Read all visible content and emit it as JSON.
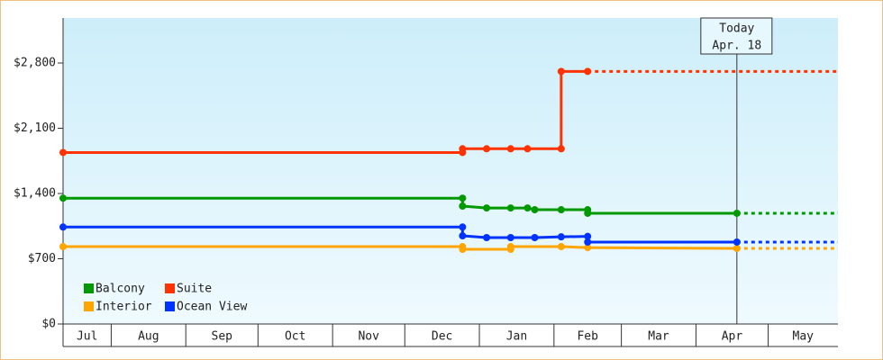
{
  "chart_data": {
    "type": "line",
    "ylim": [
      0,
      3283
    ],
    "yticks": [
      {
        "value": 0,
        "label": "$0"
      },
      {
        "value": 700,
        "label": "$700"
      },
      {
        "value": 1400,
        "label": "$1,400"
      },
      {
        "value": 2100,
        "label": "$2,100"
      },
      {
        "value": 2800,
        "label": "$2,800"
      }
    ],
    "xlim": [
      11,
      333
    ],
    "xticks": [
      {
        "value": 0,
        "label": "Jul"
      },
      {
        "value": 31,
        "label": "Aug"
      },
      {
        "value": 62,
        "label": "Sep"
      },
      {
        "value": 92,
        "label": "Oct"
      },
      {
        "value": 123,
        "label": "Nov"
      },
      {
        "value": 153,
        "label": "Dec"
      },
      {
        "value": 184,
        "label": "Jan"
      },
      {
        "value": 215,
        "label": "Feb"
      },
      {
        "value": 243,
        "label": "Mar"
      },
      {
        "value": 274,
        "label": "Apr"
      },
      {
        "value": 304,
        "label": "May"
      }
    ],
    "annotation": {
      "x": 291,
      "label": "Today",
      "sublabel": "Apr. 18"
    },
    "projection": true,
    "legend": "lower left",
    "series": [
      {
        "name": "Balcony",
        "color": "#009900",
        "x": [
          11,
          177,
          177,
          187,
          197,
          204,
          207,
          218,
          229,
          229,
          291
        ],
        "values": [
          1350,
          1350,
          1265,
          1245,
          1245,
          1245,
          1226,
          1226,
          1226,
          1188,
          1188
        ]
      },
      {
        "name": "Suite",
        "color": "#ff3300",
        "x": [
          11,
          177,
          177,
          187,
          197,
          204,
          218,
          218,
          229
        ],
        "values": [
          1840,
          1840,
          1880,
          1880,
          1880,
          1880,
          1880,
          2710,
          2710
        ]
      },
      {
        "name": "Interior",
        "color": "#ffa500",
        "x": [
          11,
          177,
          177,
          197,
          197,
          218,
          229,
          291
        ],
        "values": [
          830,
          830,
          801,
          801,
          830,
          830,
          820,
          811
        ]
      },
      {
        "name": "Ocean View",
        "color": "#0033ff",
        "x": [
          11,
          177,
          177,
          187,
          197,
          207,
          218,
          229,
          229,
          291
        ],
        "values": [
          1040,
          1040,
          946,
          927,
          927,
          927,
          935,
          940,
          879,
          879
        ]
      }
    ]
  }
}
